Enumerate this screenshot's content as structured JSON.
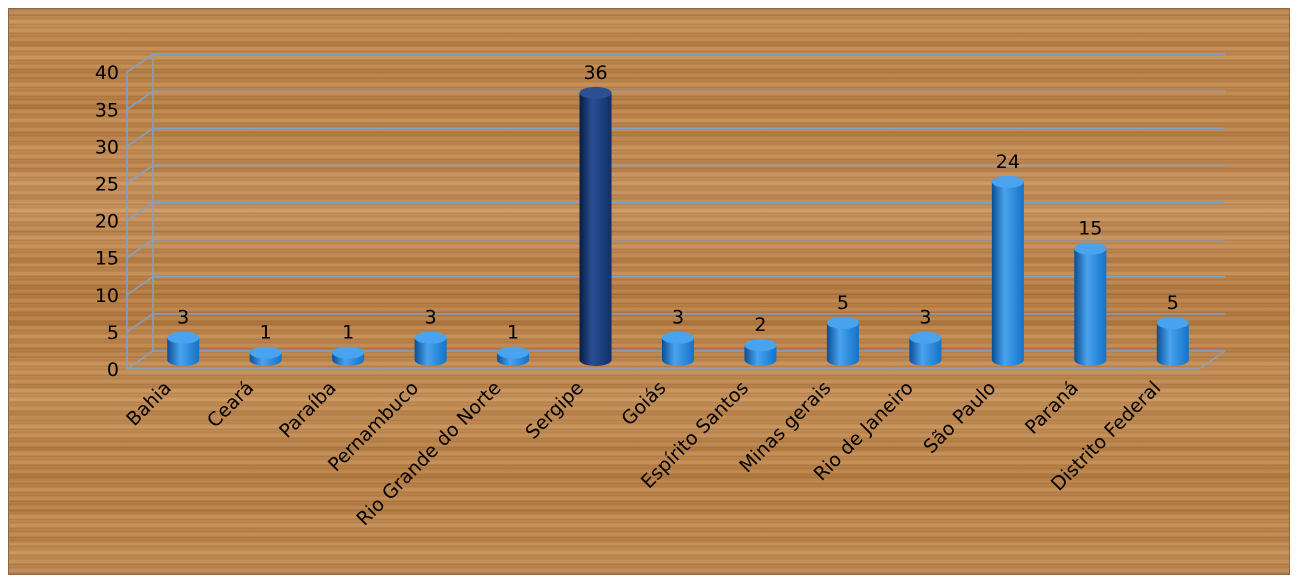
{
  "chart_data": {
    "type": "bar",
    "title": "",
    "xlabel": "",
    "ylabel": "",
    "ylim": [
      0,
      40
    ],
    "yticks": [
      0,
      5,
      10,
      15,
      20,
      25,
      30,
      35,
      40
    ],
    "grid": true,
    "style": "3d-cylinder",
    "categories": [
      "Bahia",
      "Ceará",
      "Paraíba",
      "Pernambuco",
      "Rio Grande do Norte",
      "Sergipe",
      "Goiás",
      "Espírito Santos",
      "Minas gerais",
      "Rio de Janeiro",
      "São Paulo",
      "Paraná",
      "Distrito Federal"
    ],
    "values": [
      3,
      1,
      1,
      3,
      1,
      36,
      3,
      2,
      5,
      3,
      24,
      15,
      5
    ],
    "highlight_index": 5,
    "colors": {
      "bar": "#1273c9",
      "bar_light": "#4aa3ee",
      "bar_dark": "#0a4f95",
      "highlight": "#0f2f6b",
      "highlight_light": "#2a4f92",
      "highlight_dark": "#071c45",
      "gridline": "#7fa3c8"
    }
  }
}
